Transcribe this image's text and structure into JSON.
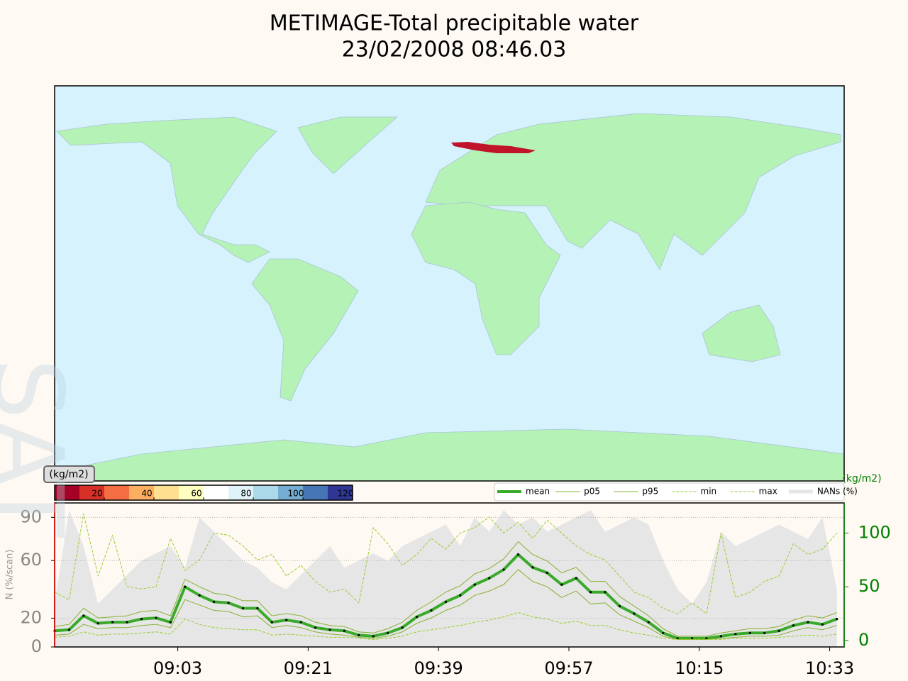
{
  "watermark": "SAT",
  "chart_data": [
    {
      "type": "map",
      "title": "METIMAGE-Total precipitable water",
      "subtitle": "23/02/2008 08:46.03",
      "colorbar": {
        "label": "(kg/m2)",
        "lim": [
          0,
          120
        ],
        "ticks": [
          20,
          40,
          60,
          80,
          100,
          120
        ],
        "colors": [
          "#a50026",
          "#d73027",
          "#f46d43",
          "#fdae61",
          "#fee090",
          "#ffffbf",
          "#ffffff",
          "#e0f3f8",
          "#abd9e9",
          "#74add1",
          "#4575b4",
          "#313695"
        ]
      }
    },
    {
      "type": "line",
      "ylabel": "N (%/scan)",
      "y2label": "(kg/m2)",
      "xlim": [
        "08:46",
        "10:35"
      ],
      "xticks": [
        "09:03",
        "09:21",
        "09:39",
        "09:57",
        "10:15",
        "10:33"
      ],
      "ylim": [
        0,
        100
      ],
      "yticks": [
        0,
        20,
        60,
        90
      ],
      "y2lim": [
        -6,
        128
      ],
      "y2ticks": [
        0,
        50,
        100
      ],
      "grid": true,
      "legend": "upper right",
      "x": [
        "08:46",
        "08:48",
        "08:50",
        "08:52",
        "08:54",
        "08:56",
        "08:58",
        "09:00",
        "09:02",
        "09:04",
        "09:06",
        "09:08",
        "09:10",
        "09:12",
        "09:14",
        "09:16",
        "09:18",
        "09:20",
        "09:22",
        "09:24",
        "09:26",
        "09:28",
        "09:30",
        "09:32",
        "09:34",
        "09:36",
        "09:38",
        "09:40",
        "09:42",
        "09:44",
        "09:46",
        "09:48",
        "09:50",
        "09:52",
        "09:54",
        "09:56",
        "09:58",
        "10:00",
        "10:02",
        "10:04",
        "10:06",
        "10:08",
        "10:10",
        "10:12",
        "10:14",
        "10:16",
        "10:18",
        "10:20",
        "10:22",
        "10:24",
        "10:26",
        "10:28",
        "10:30",
        "10:32",
        "10:34"
      ],
      "series": [
        {
          "name": "mean",
          "color": "#3aaa2a",
          "width": 4,
          "markers": true,
          "axis": "y2",
          "values": [
            9,
            10,
            23,
            16,
            17,
            17,
            20,
            21,
            17,
            50,
            42,
            36,
            35,
            30,
            30,
            17,
            19,
            17,
            12,
            10,
            9,
            5,
            4,
            7,
            12,
            22,
            28,
            36,
            42,
            52,
            58,
            66,
            80,
            68,
            63,
            52,
            58,
            45,
            45,
            32,
            25,
            17,
            7,
            2,
            2,
            2,
            4,
            6,
            7,
            7,
            9,
            14,
            17,
            15,
            20
          ]
        },
        {
          "name": "p05",
          "color": "#88b030",
          "width": 1,
          "axis": "y2",
          "values": [
            5,
            6,
            15,
            11,
            12,
            12,
            14,
            15,
            12,
            38,
            33,
            28,
            27,
            22,
            23,
            12,
            14,
            12,
            8,
            6,
            5,
            3,
            2,
            4,
            8,
            16,
            21,
            28,
            33,
            42,
            46,
            52,
            66,
            55,
            50,
            40,
            46,
            34,
            35,
            24,
            18,
            12,
            4,
            1,
            1,
            1,
            2,
            3,
            4,
            4,
            5,
            9,
            12,
            10,
            14
          ]
        },
        {
          "name": "p95",
          "color": "#88b030",
          "width": 1,
          "axis": "y2",
          "values": [
            13,
            15,
            30,
            21,
            22,
            23,
            27,
            28,
            23,
            57,
            50,
            44,
            42,
            37,
            37,
            23,
            25,
            23,
            17,
            14,
            13,
            8,
            7,
            11,
            17,
            28,
            36,
            45,
            51,
            62,
            67,
            76,
            92,
            80,
            74,
            63,
            68,
            55,
            55,
            41,
            32,
            23,
            11,
            4,
            4,
            4,
            7,
            9,
            11,
            11,
            13,
            19,
            23,
            21,
            26
          ]
        },
        {
          "name": "min",
          "color": "#9acd32",
          "width": 1,
          "dashed": true,
          "axis": "y2",
          "values": [
            3,
            4,
            8,
            5,
            6,
            6,
            7,
            8,
            6,
            20,
            15,
            12,
            11,
            10,
            10,
            5,
            6,
            5,
            4,
            3,
            3,
            2,
            1,
            2,
            4,
            8,
            10,
            12,
            14,
            17,
            19,
            22,
            26,
            22,
            20,
            16,
            18,
            14,
            14,
            10,
            7,
            5,
            2,
            1,
            1,
            1,
            1,
            2,
            2,
            2,
            3,
            4,
            5,
            4,
            6
          ]
        },
        {
          "name": "max",
          "color": "#9acd32",
          "width": 1,
          "dashed": true,
          "axis": "y2",
          "values": [
            45,
            38,
            118,
            60,
            98,
            50,
            48,
            50,
            95,
            65,
            75,
            100,
            98,
            88,
            75,
            80,
            60,
            70,
            55,
            45,
            48,
            35,
            105,
            90,
            70,
            80,
            95,
            85,
            100,
            105,
            115,
            100,
            110,
            95,
            112,
            100,
            88,
            80,
            75,
            60,
            45,
            40,
            30,
            25,
            35,
            25,
            100,
            40,
            45,
            55,
            60,
            90,
            80,
            85,
            100
          ]
        },
        {
          "name": "NANs (%)",
          "color": "#e6e6e6",
          "width": 4,
          "area": true,
          "values": [
            30,
            95,
            70,
            30,
            40,
            50,
            60,
            65,
            70,
            55,
            90,
            80,
            70,
            60,
            55,
            45,
            40,
            50,
            60,
            70,
            55,
            60,
            65,
            60,
            70,
            75,
            80,
            85,
            70,
            90,
            80,
            95,
            85,
            90,
            80,
            85,
            90,
            95,
            80,
            85,
            90,
            85,
            60,
            40,
            30,
            45,
            80,
            70,
            75,
            80,
            85,
            80,
            75,
            90,
            40
          ]
        }
      ]
    }
  ]
}
